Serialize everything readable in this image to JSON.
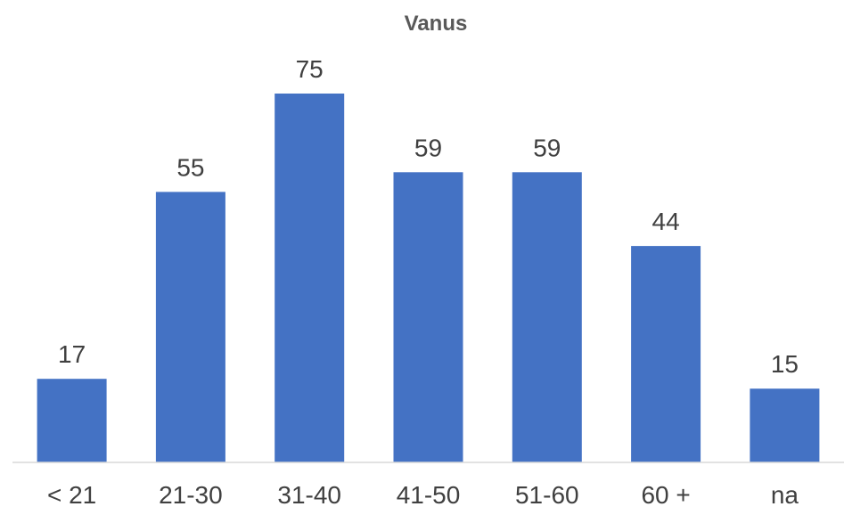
{
  "chart_data": {
    "type": "bar",
    "title": "Vanus",
    "categories": [
      "< 21",
      "21-30",
      "31-40",
      "41-50",
      "51-60",
      "60 +",
      "na"
    ],
    "series": [
      {
        "values": [
          17,
          55,
          75,
          59,
          59,
          44,
          15
        ]
      }
    ],
    "xlabel": "",
    "ylabel": "",
    "ylim": [
      0,
      75
    ],
    "grid": false,
    "legend": "none",
    "colors": {
      "bar": "#4472C4",
      "axis": "#D9D9D9",
      "text": "#404040",
      "title": "#595959"
    }
  }
}
